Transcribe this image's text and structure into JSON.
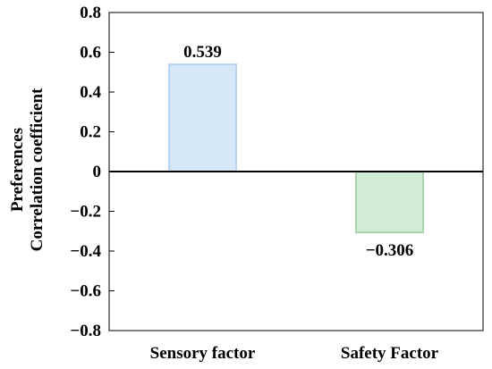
{
  "chart_data": {
    "type": "bar",
    "categories": [
      "Sensory factor",
      "Safety Factor"
    ],
    "values": [
      0.539,
      -0.306
    ],
    "data_labels": [
      "0.539",
      "−0.306"
    ],
    "ylabel_lines": [
      "Preferences",
      "Correlation coefficient"
    ],
    "xlabel": "",
    "title": "",
    "ylim": [
      -0.8,
      0.8
    ],
    "yticks": [
      0.8,
      0.6,
      0.4,
      0.2,
      0,
      -0.2,
      -0.4,
      -0.6,
      -0.8
    ],
    "ytick_labels": [
      "0.8",
      "0.6",
      "0.4",
      "0.2",
      "0",
      "−0.2",
      "−0.4",
      "−0.6",
      "−0.8"
    ],
    "grid": false,
    "legend": "none",
    "colors": {
      "fills": [
        "#d6e8f8",
        "#d3ecd6"
      ],
      "strokes": [
        "#b7d4f0",
        "#a9d2ae"
      ],
      "axis": "#000000"
    }
  }
}
